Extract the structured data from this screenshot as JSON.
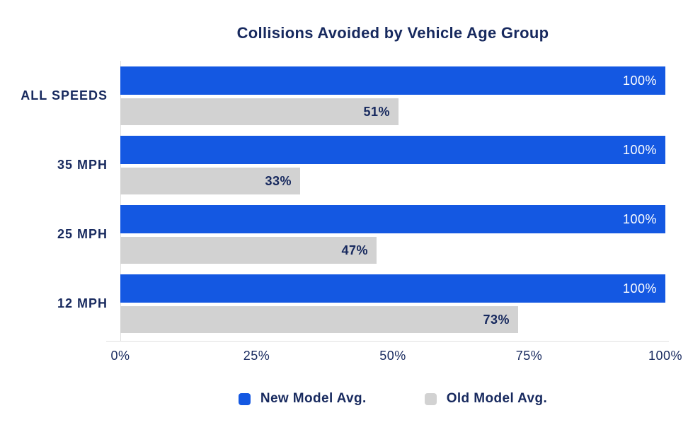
{
  "title": "Collisions Avoided by Vehicle Age Group",
  "colors": {
    "navy_text": "#17295e",
    "axis_line": "#e0e0e0",
    "background": "#ffffff",
    "new_model_blue": "#1458e2",
    "old_model_gray": "#d2d2d2"
  },
  "chart_data": {
    "type": "bar",
    "orientation": "horizontal",
    "title": "Collisions Avoided by Vehicle Age Group",
    "categories": [
      "ALL SPEEDS",
      "35 MPH",
      "25 MPH",
      "12 MPH"
    ],
    "series": [
      {
        "name": "New Model Avg.",
        "values": [
          100,
          100,
          100,
          100
        ],
        "color": "#1458e2",
        "label_color": "#ffffff",
        "label_bold": false
      },
      {
        "name": "Old Model Avg.",
        "values": [
          51,
          33,
          47,
          73
        ],
        "color": "#d2d2d2",
        "label_color": "#17295e",
        "label_bold": true
      }
    ],
    "value_suffix": "%",
    "x_ticks": [
      "0%",
      "25%",
      "50%",
      "75%",
      "100%"
    ],
    "xlim": [
      0,
      100
    ],
    "xlabel": "",
    "ylabel": "",
    "grid": false,
    "legend_position": "bottom"
  }
}
